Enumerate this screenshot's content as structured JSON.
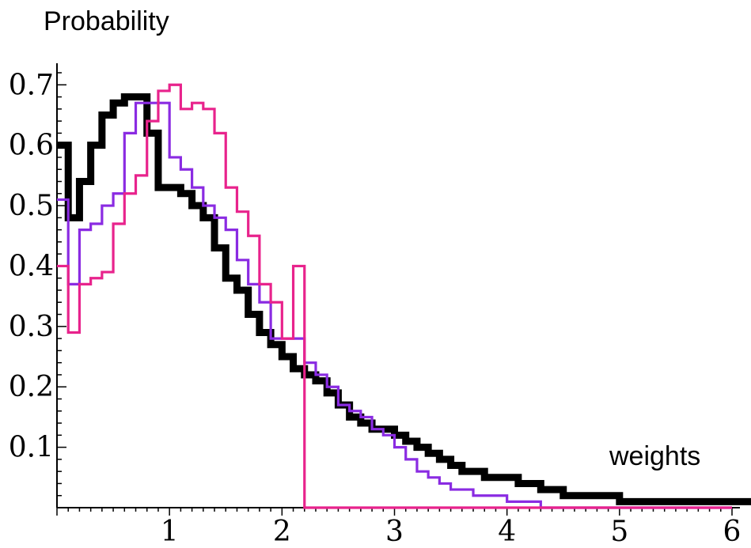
{
  "chart_data": {
    "type": "line",
    "ylabel": "Probability",
    "xlabel": "weights",
    "xlim": [
      0,
      6
    ],
    "ylim": [
      0,
      0.72
    ],
    "x_ticks": [
      1,
      2,
      3,
      4,
      5,
      6
    ],
    "y_ticks": [
      0.1,
      0.2,
      0.3,
      0.4,
      0.5,
      0.6,
      0.7
    ],
    "bin_width": 0.1,
    "colors": {
      "black_series": "#000000",
      "purple_series": "#8a2be2",
      "magenta_series": "#e8238c"
    },
    "series": [
      {
        "color_key": "black_series",
        "stroke": "thick",
        "values": [
          0.6,
          0.48,
          0.54,
          0.6,
          0.65,
          0.67,
          0.68,
          0.68,
          0.62,
          0.53,
          0.53,
          0.52,
          0.5,
          0.48,
          0.43,
          0.38,
          0.36,
          0.32,
          0.29,
          0.27,
          0.25,
          0.23,
          0.22,
          0.21,
          0.19,
          0.17,
          0.15,
          0.14,
          0.13,
          0.13,
          0.12,
          0.11,
          0.1,
          0.09,
          0.08,
          0.07,
          0.06,
          0.06,
          0.05,
          0.05,
          0.05,
          0.04,
          0.04,
          0.03,
          0.03,
          0.02,
          0.02,
          0.02,
          0.02,
          0.02,
          0.01,
          0.01,
          0.01,
          0.01,
          0.01,
          0.01,
          0.01,
          0.01,
          0.01,
          0.01,
          0.01,
          0.01,
          0.01,
          0.01,
          0.01,
          0.01,
          0.01,
          0.01,
          0.01,
          0.01,
          0.01,
          0.01,
          0.01,
          0.01,
          0.01,
          0.01,
          0.01,
          0.01,
          0.01,
          0.01,
          0.01,
          0.01,
          0.01,
          0.01,
          0.01,
          0.01,
          0.01,
          0.01,
          0.01,
          0.01
        ]
      },
      {
        "color_key": "purple_series",
        "stroke": "medium",
        "values": [
          0.51,
          0.37,
          0.46,
          0.47,
          0.5,
          0.52,
          0.62,
          0.67,
          0.67,
          0.67,
          0.58,
          0.56,
          0.53,
          0.5,
          0.48,
          0.46,
          0.41,
          0.37,
          0.34,
          0.28,
          0.28,
          0.28,
          0.24,
          0.22,
          0.2,
          0.17,
          0.16,
          0.15,
          0.13,
          0.12,
          0.1,
          0.08,
          0.06,
          0.05,
          0.04,
          0.03,
          0.03,
          0.02,
          0.02,
          0.02,
          0.01,
          0.01,
          0.01,
          0.0,
          0.0,
          0.0,
          0.0,
          0.0,
          0.0,
          0.0,
          0.0,
          0.0,
          0.0,
          0.0,
          0.0,
          0.0,
          0.0,
          0.0,
          0.0,
          0.0
        ]
      },
      {
        "color_key": "magenta_series",
        "stroke": "medium",
        "values": [
          0.4,
          0.29,
          0.37,
          0.38,
          0.39,
          0.47,
          0.52,
          0.55,
          0.64,
          0.69,
          0.7,
          0.66,
          0.67,
          0.66,
          0.62,
          0.53,
          0.49,
          0.45,
          0.37,
          0.34,
          0.28,
          0.4,
          0.0,
          0.0,
          0.0,
          0.0,
          0.0,
          0.0,
          0.0,
          0.0,
          0.0,
          0.0,
          0.0,
          0.0,
          0.0,
          0.0,
          0.0,
          0.0,
          0.0,
          0.0,
          0.0,
          0.0,
          0.0,
          0.0,
          0.0,
          0.0,
          0.0,
          0.0,
          0.0,
          0.0,
          0.0,
          0.0,
          0.0,
          0.0,
          0.0,
          0.0,
          0.0,
          0.0,
          0.0,
          0.0
        ]
      }
    ]
  }
}
